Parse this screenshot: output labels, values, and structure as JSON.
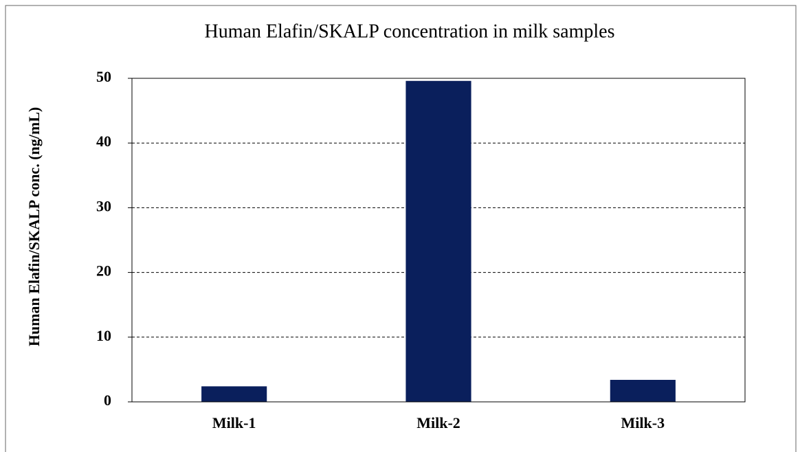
{
  "chart_data": {
    "type": "bar",
    "title": "Human Elafin/SKALP concentration in milk samples",
    "y_label": "Human Elafin/SKALP conc. (ng/mL)",
    "categories": [
      "Milk-1",
      "Milk-2",
      "Milk-3"
    ],
    "values": [
      2.4,
      49.6,
      3.4
    ],
    "color": "#0a1f5c",
    "ylim": [
      0,
      50
    ],
    "yticks": [
      0,
      10,
      20,
      30,
      40,
      50
    ],
    "grid": true
  }
}
